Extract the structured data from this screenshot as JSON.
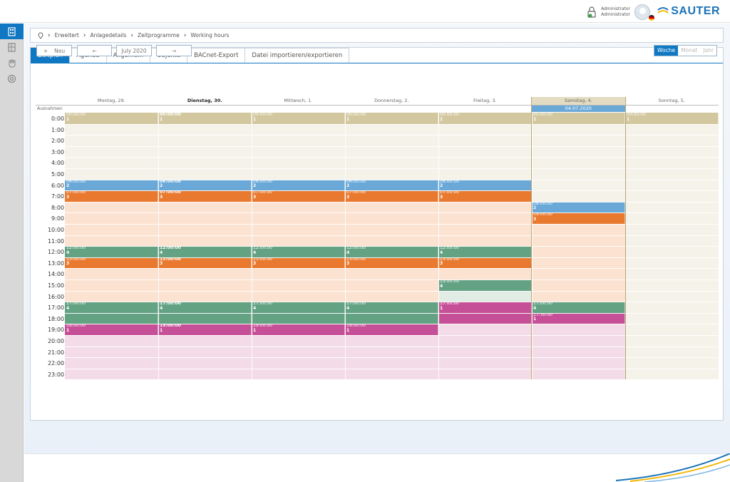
{
  "topbar": {
    "user_line1": "Administrator",
    "user_line2": "Administrator",
    "brand": "SAUTER",
    "brand_color": "#1b73b9"
  },
  "nav": {
    "items": [
      "building-icon",
      "floorplan-icon",
      "hand-icon",
      "settings-wheel-icon"
    ],
    "active_index": 0
  },
  "breadcrumb": [
    "Erweitert",
    "Anlagedetails",
    "Zeitprogramme",
    "Working hours"
  ],
  "tabs": [
    "Zeitplan",
    "Agenda",
    "Allgemein",
    "Objekte",
    "BACnet-Export",
    "Datei importieren/exportieren"
  ],
  "active_tab": 0,
  "toolbar": {
    "new_label": "Neu",
    "prev_label": "←",
    "month_label": "July 2020",
    "next_label": "→"
  },
  "view_options": [
    "Woche",
    "Monat",
    "Jahr"
  ],
  "active_view": 0,
  "calendar": {
    "days": [
      "Montag, 29.",
      "Dienstag, 30.",
      "Mittwoch, 1.",
      "Donnerstag, 2.",
      "Freitag, 3.",
      "Samstag, 4.",
      "Sonntag, 5."
    ],
    "today_index": 1,
    "highlight_index": 5,
    "exceptions_label": "Ausnahmen",
    "exception_date": "04.07.2020",
    "hours": [
      "0:00",
      "1:00",
      "2:00",
      "3:00",
      "4:00",
      "5:00",
      "6:00",
      "7:00",
      "8:00",
      "9:00",
      "10:00",
      "11:00",
      "12:00",
      "13:00",
      "14:00",
      "15:00",
      "16:00",
      "17:00",
      "18:00",
      "19:00",
      "20:00",
      "21:00",
      "22:00",
      "23:00"
    ],
    "colors": {
      "v1": "#d2c79e",
      "v2": "#6aa8d8",
      "v3": "#e8792e",
      "v4": "#64a284",
      "v5": "#c65098",
      "bg1": "#f5f2e9",
      "bg3": "#fbe2d1",
      "bg4": "#e1ece5",
      "bg5": "#f3dbe8"
    },
    "events": [
      {
        "time": "00:00:00",
        "value": "1",
        "days": [
          0,
          1,
          2,
          3,
          4,
          5,
          6
        ],
        "start": 0,
        "end": 1,
        "color": "v1"
      },
      {
        "time": "06:00:00",
        "value": "2",
        "days": [
          0,
          1,
          2,
          3,
          4
        ],
        "start": 6,
        "end": 7,
        "color": "v2"
      },
      {
        "time": "07:00:00",
        "value": "3",
        "days": [
          0,
          1,
          2,
          3,
          4
        ],
        "start": 7,
        "end": 8,
        "color": "v3"
      },
      {
        "time": "08:00:00",
        "value": "2",
        "days": [
          5
        ],
        "start": 8,
        "end": 9,
        "color": "v2"
      },
      {
        "time": "09:00:00",
        "value": "3",
        "days": [
          5
        ],
        "start": 9,
        "end": 10,
        "color": "v3"
      },
      {
        "time": "12:00:00",
        "value": "4",
        "days": [
          0,
          1,
          2,
          3,
          4
        ],
        "start": 12,
        "end": 13,
        "color": "v4"
      },
      {
        "time": "13:00:00",
        "value": "3",
        "days": [
          0,
          1,
          2,
          3,
          4
        ],
        "start": 13,
        "end": 14,
        "color": "v3"
      },
      {
        "time": "15:00:00",
        "value": "4",
        "days": [
          4
        ],
        "start": 15,
        "end": 16,
        "color": "v4"
      },
      {
        "time": "17:00:00",
        "value": "4",
        "days": [
          0,
          1,
          2,
          3
        ],
        "start": 17,
        "end": 19,
        "color": "v4"
      },
      {
        "time": "17:00:00",
        "value": "1",
        "days": [
          4
        ],
        "start": 17,
        "end": 19,
        "color": "v5"
      },
      {
        "time": "17:00:00",
        "value": "4",
        "days": [
          5
        ],
        "start": 17,
        "end": 18,
        "color": "v4"
      },
      {
        "time": "17:30:00",
        "value": "1",
        "days": [
          5
        ],
        "start": 18,
        "end": 19,
        "color": "v5"
      },
      {
        "time": "19:00:00",
        "value": "1",
        "days": [
          0,
          1,
          2,
          3
        ],
        "start": 19,
        "end": 20,
        "color": "v5"
      }
    ],
    "backgrounds": [
      {
        "days": [
          0,
          1,
          2,
          3,
          4
        ],
        "start": 1,
        "end": 6,
        "color": "bg1"
      },
      {
        "days": [
          5
        ],
        "start": 1,
        "end": 8,
        "color": "bg1"
      },
      {
        "days": [
          6
        ],
        "start": 1,
        "end": 24,
        "color": "bg1"
      },
      {
        "days": [
          0,
          1,
          2,
          3,
          4
        ],
        "start": 8,
        "end": 12,
        "color": "bg3"
      },
      {
        "days": [
          5
        ],
        "start": 10,
        "end": 17,
        "color": "bg3"
      },
      {
        "days": [
          0,
          1,
          2,
          3,
          4
        ],
        "start": 14,
        "end": 17,
        "color": "bg3"
      },
      {
        "days": [
          4
        ],
        "start": 16,
        "end": 17,
        "color": "bg4"
      },
      {
        "days": [
          0,
          1,
          2,
          3,
          4,
          5
        ],
        "start": 19,
        "end": 24,
        "color": "bg5"
      }
    ]
  }
}
